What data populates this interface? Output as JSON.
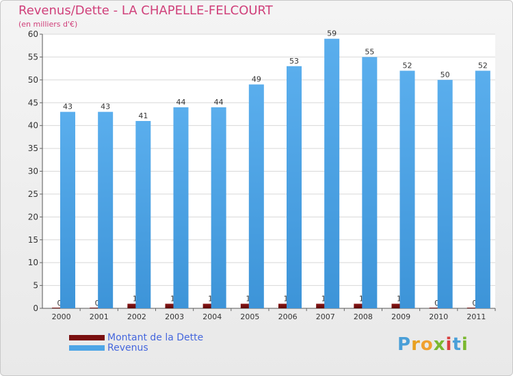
{
  "title": "Revenus/Dette - LA CHAPELLE-FELCOURT",
  "subtitle": "(en milliers d'€)",
  "legend": {
    "debt_label": "Montant de la Dette",
    "revenue_label": "Revenus"
  },
  "logo": {
    "text": "Proxiti",
    "letters": [
      "P",
      "r",
      "o",
      "x",
      "i",
      "t",
      "i"
    ],
    "colors": [
      "#4a9fd8",
      "#e8a020",
      "#f0a030",
      "#7ab830",
      "#d84040",
      "#4a9fd8",
      "#7ab830"
    ]
  },
  "colors": {
    "debt": "#7a0f0f",
    "revenue": "#4ea5e6",
    "title": "#d0407a",
    "legend_text": "#4466dd"
  },
  "chart_data": {
    "type": "bar",
    "title": "Revenus/Dette - LA CHAPELLE-FELCOURT",
    "subtitle": "(en milliers d'€)",
    "categories": [
      "2000",
      "2001",
      "2002",
      "2003",
      "2004",
      "2005",
      "2006",
      "2007",
      "2008",
      "2009",
      "2010",
      "2011"
    ],
    "series": [
      {
        "name": "Montant de la Dette",
        "values": [
          0,
          0,
          1,
          1,
          1,
          1,
          1,
          1,
          1,
          1,
          0,
          0
        ]
      },
      {
        "name": "Revenus",
        "values": [
          43,
          43,
          41,
          44,
          44,
          49,
          53,
          59,
          55,
          52,
          50,
          52
        ]
      }
    ],
    "ylim": [
      0,
      60
    ],
    "yticks": [
      0,
      5,
      10,
      15,
      20,
      25,
      30,
      35,
      40,
      45,
      50,
      55,
      60
    ],
    "grid": true,
    "legend_position": "bottom-left"
  }
}
